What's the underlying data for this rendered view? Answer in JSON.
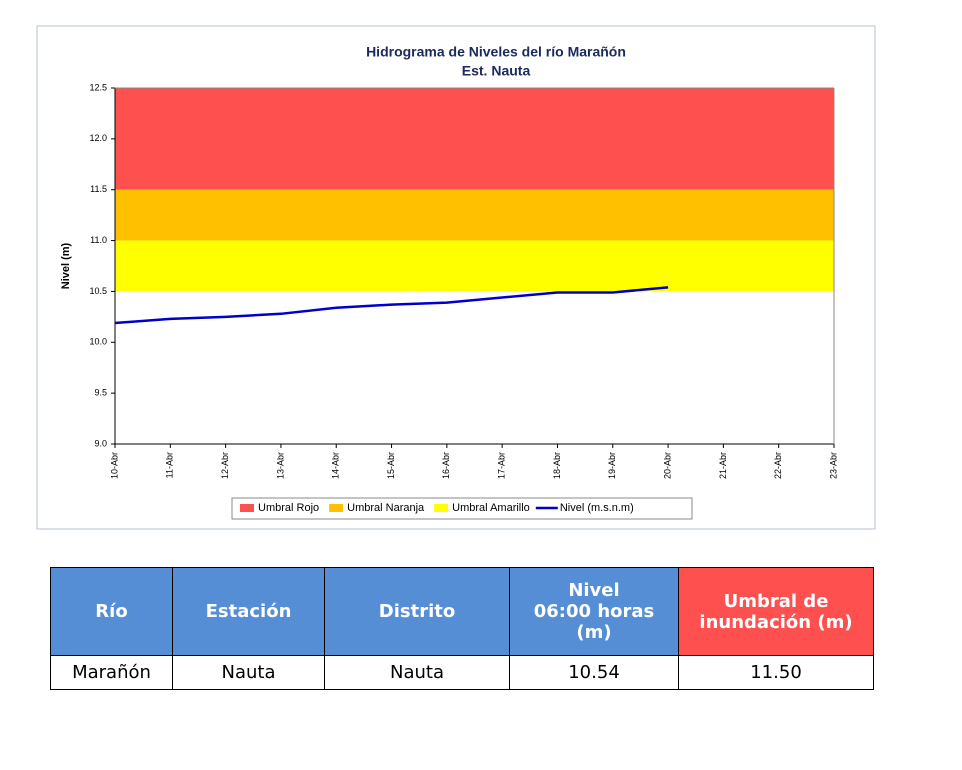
{
  "chart_data": {
    "type": "line",
    "title": "Hidrograma de Niveles del río Marañón",
    "subtitle": "Est. Nauta",
    "y_label": "Nivel (m)",
    "categories": [
      "10-Abr",
      "11-Abr",
      "12-Abr",
      "13-Abr",
      "14-Abr",
      "15-Abr",
      "16-Abr",
      "17-Abr",
      "18-Abr",
      "19-Abr",
      "20-Abr",
      "21-Abr",
      "22-Abr",
      "23-Abr"
    ],
    "bands": [
      {
        "name": "Umbral Rojo",
        "color": "#ff5050",
        "from": 11.5,
        "to": 12.5
      },
      {
        "name": "Umbral Naranja",
        "color": "#ffc000",
        "from": 11,
        "to": 11.5
      },
      {
        "name": "Umbral Amarillo",
        "color": "#ffff00",
        "from": 10.5,
        "to": 11
      }
    ],
    "series": [
      {
        "name": "Nivel (m.s.n.m)",
        "color": "#0000cc",
        "values": [
          10.19,
          10.23,
          10.25,
          10.28,
          10.34,
          10.37,
          10.39,
          10.44,
          10.49,
          10.49,
          10.54,
          null,
          null,
          null
        ]
      }
    ],
    "ylim": [
      9,
      12.5
    ],
    "yticks": [
      {
        "value": 9,
        "label": "9.0"
      },
      9.5,
      {
        "value": 10,
        "label": "10.0"
      },
      10.5,
      {
        "value": 11,
        "label": "11.0"
      },
      11.5,
      {
        "value": 12,
        "label": "12.0"
      },
      12.5
    ],
    "grid": false,
    "legend": "bottom"
  },
  "table": {
    "header": [
      "Río",
      "Estación",
      "Distrito",
      "Nivel\n06:00 horas\n(m)",
      "Umbral de\ninundación (m)"
    ],
    "rows": [
      [
        "Marañón",
        "Nauta",
        "Nauta",
        "10.54",
        "11.50"
      ]
    ]
  }
}
